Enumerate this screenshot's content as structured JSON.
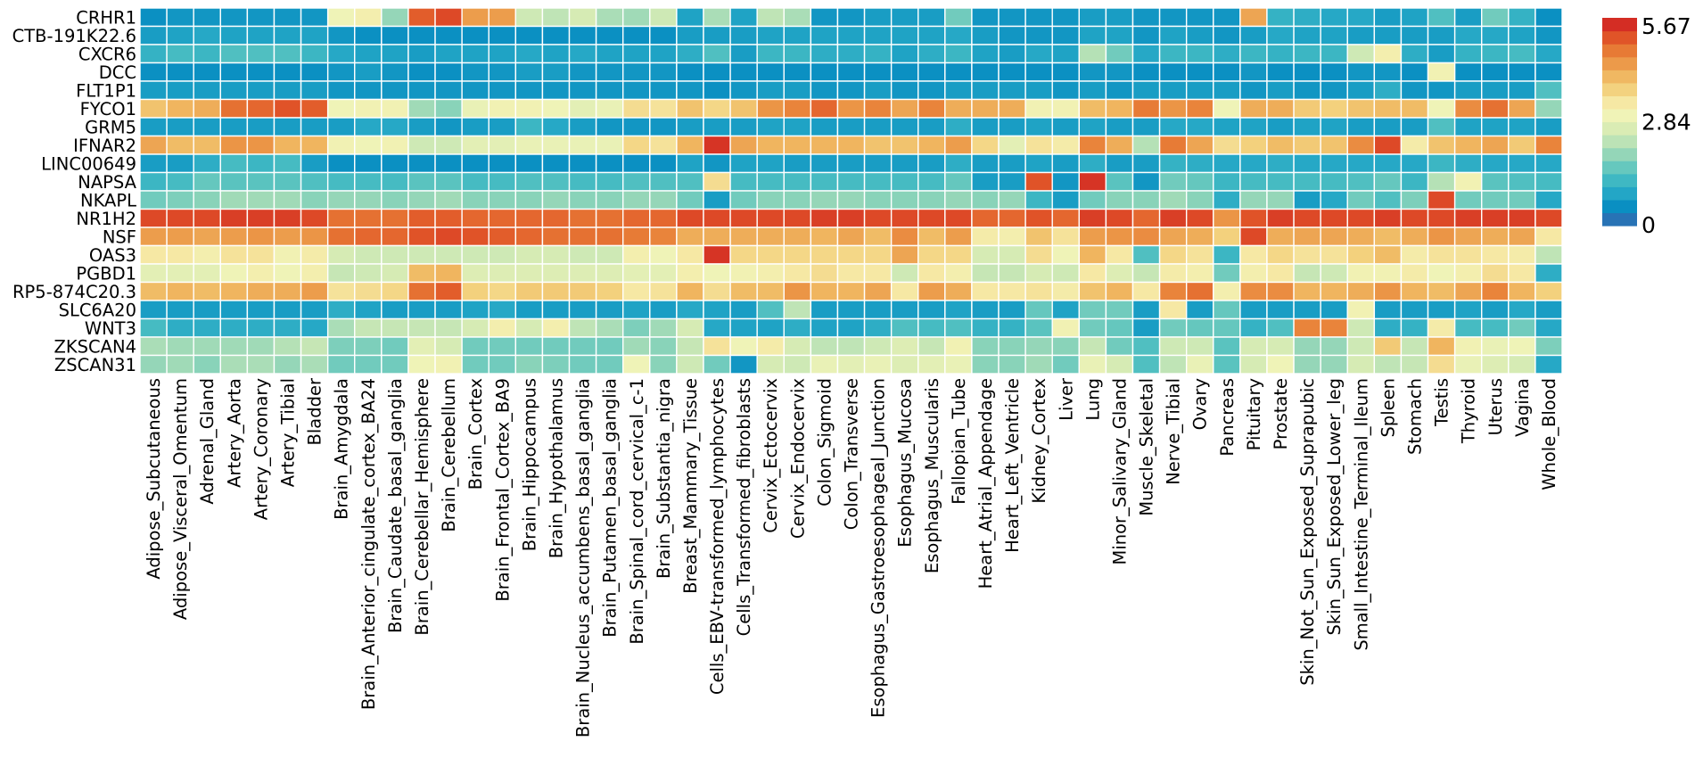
{
  "chart_data": {
    "type": "heatmap",
    "title": "",
    "xlabel": "",
    "ylabel": "",
    "rows": [
      "CRHR1",
      "CTB-191K22.6",
      "CXCR6",
      "DCC",
      "FLT1P1",
      "FYCO1",
      "GRM5",
      "IFNAR2",
      "LINC00649",
      "NAPSA",
      "NKAPL",
      "NR1H2",
      "NSF",
      "OAS3",
      "PGBD1",
      "RP5-874C20.3",
      "SLC6A20",
      "WNT3",
      "ZKSCAN4",
      "ZSCAN31"
    ],
    "columns": [
      "Adipose_Subcutaneous",
      "Adipose_Visceral_Omentum",
      "Adrenal_Gland",
      "Artery_Aorta",
      "Artery_Coronary",
      "Artery_Tibial",
      "Bladder",
      "Brain_Amygdala",
      "Brain_Anterior_cingulate_cortex_BA24",
      "Brain_Caudate_basal_ganglia",
      "Brain_Cerebellar_Hemisphere",
      "Brain_Cerebellum",
      "Brain_Cortex",
      "Brain_Frontal_Cortex_BA9",
      "Brain_Hippocampus",
      "Brain_Hypothalamus",
      "Brain_Nucleus_accumbens_basal_ganglia",
      "Brain_Putamen_basal_ganglia",
      "Brain_Spinal_cord_cervical_c-1",
      "Brain_Substantia_nigra",
      "Breast_Mammary_Tissue",
      "Cells_EBV-transformed_lymphocytes",
      "Cells_Transformed_fibroblasts",
      "Cervix_Ectocervix",
      "Cervix_Endocervix",
      "Colon_Sigmoid",
      "Colon_Transverse",
      "Esophagus_Gastroesophageal_Junction",
      "Esophagus_Mucosa",
      "Esophagus_Muscularis",
      "Fallopian_Tube",
      "Heart_Atrial_Appendage",
      "Heart_Left_Ventricle",
      "Kidney_Cortex",
      "Liver",
      "Lung",
      "Minor_Salivary_Gland",
      "Muscle_Skeletal",
      "Nerve_Tibial",
      "Ovary",
      "Pancreas",
      "Pituitary",
      "Prostate",
      "Skin_Not_Sun_Exposed_Suprapubic",
      "Skin_Sun_Exposed_Lower_leg",
      "Small_Intestine_Terminal_Ileum",
      "Spleen",
      "Stomach",
      "Testis",
      "Thyroid",
      "Uterus",
      "Vagina",
      "Whole_Blood"
    ],
    "values": [
      [
        0.4,
        0.5,
        0.5,
        0.5,
        0.5,
        0.5,
        0.5,
        3.0,
        3.2,
        1.9,
        5.2,
        5.4,
        4.5,
        4.5,
        2.5,
        2.3,
        2.6,
        2.1,
        2.0,
        2.5,
        0.7,
        2.1,
        0.7,
        2.3,
        2.1,
        0.5,
        0.5,
        0.6,
        0.6,
        0.6,
        1.6,
        0.5,
        0.5,
        0.5,
        0.5,
        0.6,
        0.6,
        0.5,
        0.5,
        0.5,
        0.5,
        4.4,
        1.0,
        0.9,
        0.8,
        0.8,
        0.6,
        0.7,
        1.3,
        0.6,
        1.6,
        1.0,
        0.4
      ],
      [
        0.6,
        0.7,
        0.8,
        0.7,
        0.7,
        0.7,
        0.7,
        0.5,
        0.4,
        0.4,
        0.4,
        0.4,
        0.4,
        0.4,
        0.4,
        0.4,
        0.4,
        0.4,
        0.4,
        0.4,
        0.6,
        0.6,
        0.6,
        0.7,
        0.7,
        0.7,
        0.7,
        0.7,
        0.7,
        0.7,
        0.8,
        0.6,
        0.5,
        0.5,
        0.5,
        0.7,
        0.7,
        0.5,
        0.7,
        0.6,
        0.5,
        0.6,
        0.8,
        0.7,
        0.7,
        0.6,
        0.6,
        0.6,
        0.6,
        0.8,
        0.8,
        0.7,
        0.5
      ],
      [
        1.0,
        1.2,
        1.1,
        1.3,
        1.3,
        1.3,
        1.1,
        0.8,
        0.7,
        0.7,
        0.6,
        0.7,
        0.7,
        0.7,
        0.8,
        0.7,
        0.8,
        0.7,
        0.7,
        0.7,
        0.9,
        1.3,
        0.6,
        1.1,
        1.1,
        0.9,
        0.9,
        1.0,
        0.7,
        0.9,
        1.1,
        0.7,
        0.6,
        0.8,
        0.7,
        2.2,
        1.6,
        0.8,
        1.1,
        1.1,
        0.9,
        1.1,
        1.0,
        1.1,
        1.1,
        2.5,
        3.2,
        0.9,
        0.6,
        1.0,
        1.1,
        1.2,
        0.8
      ],
      [
        0.4,
        0.4,
        0.4,
        0.4,
        0.4,
        0.4,
        0.4,
        0.5,
        0.6,
        0.5,
        0.4,
        0.4,
        0.5,
        0.5,
        0.6,
        0.6,
        0.5,
        0.5,
        0.5,
        0.5,
        0.4,
        0.4,
        0.4,
        0.4,
        0.4,
        0.4,
        0.4,
        0.4,
        0.4,
        0.4,
        0.4,
        0.4,
        0.4,
        0.4,
        0.4,
        0.5,
        0.5,
        0.4,
        0.4,
        0.4,
        0.4,
        0.5,
        0.4,
        0.4,
        0.4,
        0.5,
        0.5,
        0.4,
        3.1,
        0.4,
        0.4,
        0.4,
        0.4
      ],
      [
        0.6,
        0.6,
        0.6,
        0.6,
        0.6,
        0.6,
        0.6,
        0.5,
        0.5,
        0.5,
        0.5,
        0.5,
        0.5,
        0.5,
        0.5,
        0.5,
        0.5,
        0.5,
        0.5,
        0.5,
        0.5,
        0.4,
        0.5,
        0.6,
        0.6,
        0.5,
        0.5,
        0.6,
        0.5,
        0.5,
        0.6,
        0.6,
        0.6,
        0.6,
        0.5,
        0.6,
        0.5,
        0.6,
        0.6,
        0.6,
        0.6,
        0.5,
        0.6,
        0.5,
        0.5,
        0.6,
        0.9,
        0.5,
        0.5,
        0.6,
        0.6,
        0.6,
        1.3
      ],
      [
        4.0,
        4.2,
        4.3,
        5.0,
        5.1,
        5.3,
        5.2,
        3.0,
        3.1,
        3.1,
        2.0,
        1.8,
        2.9,
        3.1,
        3.1,
        3.0,
        2.8,
        2.9,
        3.6,
        3.5,
        4.0,
        3.7,
        4.0,
        4.6,
        4.8,
        5.1,
        4.6,
        4.8,
        4.4,
        4.8,
        4.3,
        4.3,
        4.3,
        3.1,
        3.1,
        4.1,
        4.2,
        4.9,
        4.6,
        4.8,
        3.0,
        4.3,
        4.3,
        3.9,
        3.8,
        4.0,
        4.1,
        4.1,
        3.0,
        4.7,
        5.0,
        4.4,
        1.9
      ],
      [
        0.6,
        0.6,
        0.6,
        0.6,
        0.6,
        0.6,
        0.6,
        0.6,
        0.8,
        0.8,
        0.6,
        0.5,
        0.6,
        0.6,
        1.1,
        0.8,
        0.6,
        0.5,
        0.5,
        0.5,
        0.6,
        0.6,
        0.6,
        0.7,
        0.7,
        0.6,
        0.6,
        0.6,
        0.6,
        0.6,
        0.9,
        0.6,
        0.6,
        0.7,
        0.6,
        0.7,
        0.6,
        0.6,
        0.8,
        0.8,
        0.7,
        0.7,
        0.6,
        0.7,
        0.7,
        0.6,
        0.6,
        0.6,
        1.3,
        0.7,
        0.7,
        0.7,
        0.6
      ],
      [
        4.4,
        4.1,
        4.1,
        4.6,
        4.6,
        4.2,
        4.2,
        3.1,
        3.0,
        3.1,
        2.5,
        2.5,
        2.8,
        2.8,
        2.9,
        2.9,
        2.9,
        2.9,
        3.7,
        3.5,
        4.2,
        5.6,
        4.4,
        4.2,
        4.2,
        4.2,
        4.2,
        4.0,
        4.0,
        4.2,
        4.5,
        3.7,
        2.8,
        3.5,
        3.3,
        4.8,
        4.3,
        2.2,
        4.9,
        4.4,
        3.6,
        3.8,
        4.1,
        3.9,
        4.0,
        4.7,
        5.4,
        3.3,
        4.0,
        4.2,
        4.4,
        3.9,
        4.8
      ],
      [
        0.6,
        0.6,
        0.9,
        1.2,
        1.1,
        1.2,
        0.6,
        0.4,
        0.4,
        0.4,
        0.4,
        0.4,
        0.4,
        0.4,
        0.4,
        0.4,
        0.4,
        0.4,
        0.4,
        0.4,
        0.7,
        0.5,
        0.7,
        0.7,
        0.6,
        0.6,
        0.6,
        0.6,
        0.6,
        0.6,
        0.9,
        0.6,
        0.6,
        0.7,
        0.6,
        0.9,
        0.6,
        0.6,
        1.0,
        0.9,
        0.8,
        0.8,
        0.9,
        0.8,
        0.8,
        0.8,
        0.8,
        0.8,
        1.1,
        0.9,
        0.8,
        0.8,
        0.8
      ],
      [
        1.1,
        1.2,
        1.5,
        1.4,
        1.4,
        1.4,
        1.3,
        1.2,
        1.2,
        1.2,
        1.4,
        1.4,
        1.2,
        1.2,
        1.3,
        1.3,
        1.2,
        1.2,
        1.3,
        1.3,
        1.3,
        3.6,
        1.2,
        1.2,
        1.2,
        1.2,
        1.2,
        1.2,
        1.2,
        1.2,
        1.5,
        0.6,
        0.6,
        5.3,
        0.5,
        5.6,
        1.4,
        0.5,
        1.6,
        1.5,
        1.1,
        1.2,
        1.2,
        1.2,
        1.2,
        1.3,
        1.5,
        1.1,
        2.2,
        3.1,
        1.4,
        1.3,
        1.2
      ],
      [
        1.6,
        1.7,
        1.8,
        2.0,
        2.0,
        2.0,
        1.8,
        1.9,
        1.9,
        1.8,
        1.9,
        2.0,
        1.8,
        1.8,
        1.8,
        1.9,
        1.8,
        1.8,
        1.9,
        1.9,
        1.6,
        0.6,
        1.6,
        1.8,
        1.8,
        1.9,
        1.9,
        1.8,
        1.8,
        1.8,
        1.9,
        1.8,
        1.9,
        1.1,
        0.6,
        1.6,
        1.8,
        1.8,
        2.0,
        1.8,
        0.9,
        1.9,
        1.9,
        0.6,
        0.8,
        1.6,
        1.3,
        1.7,
        5.4,
        1.6,
        1.6,
        1.6,
        0.8
      ],
      [
        5.4,
        5.4,
        5.4,
        5.5,
        5.5,
        5.5,
        5.4,
        5.0,
        5.0,
        5.0,
        5.2,
        5.2,
        5.1,
        5.1,
        5.1,
        5.1,
        5.0,
        5.0,
        5.1,
        5.1,
        5.4,
        5.4,
        5.4,
        5.4,
        5.4,
        5.5,
        5.5,
        5.4,
        5.4,
        5.4,
        5.4,
        5.1,
        5.1,
        5.3,
        5.1,
        5.5,
        5.4,
        5.1,
        5.5,
        5.4,
        4.6,
        5.3,
        5.5,
        5.4,
        5.4,
        5.4,
        5.5,
        5.4,
        5.4,
        5.5,
        5.5,
        5.5,
        5.4
      ],
      [
        4.5,
        4.5,
        4.4,
        4.5,
        4.6,
        4.5,
        4.6,
        5.0,
        5.1,
        5.1,
        5.3,
        5.4,
        5.3,
        5.2,
        5.1,
        5.0,
        5.0,
        5.0,
        4.9,
        4.8,
        4.3,
        4.3,
        4.3,
        4.3,
        4.3,
        4.2,
        4.4,
        4.1,
        4.7,
        4.1,
        4.5,
        3.3,
        3.2,
        4.0,
        3.5,
        4.5,
        4.6,
        4.7,
        4.4,
        4.3,
        3.8,
        5.4,
        4.3,
        4.4,
        4.4,
        4.3,
        4.1,
        4.3,
        4.6,
        4.4,
        4.3,
        4.4,
        3.4
      ],
      [
        3.4,
        3.4,
        3.2,
        3.5,
        3.5,
        3.1,
        3.3,
        2.6,
        2.5,
        2.5,
        2.5,
        2.5,
        2.5,
        2.5,
        2.6,
        2.6,
        2.5,
        2.5,
        3.2,
        3.0,
        3.4,
        5.6,
        3.7,
        3.7,
        3.7,
        3.7,
        3.7,
        3.7,
        4.4,
        3.7,
        3.7,
        2.6,
        2.6,
        3.6,
        3.0,
        4.2,
        3.4,
        1.3,
        3.7,
        3.5,
        1.1,
        3.4,
        3.7,
        3.5,
        3.5,
        3.8,
        4.1,
        3.3,
        3.5,
        3.5,
        3.4,
        3.3,
        2.3
      ],
      [
        2.8,
        2.8,
        2.8,
        3.0,
        3.2,
        3.0,
        3.2,
        2.4,
        2.5,
        2.6,
        4.1,
        4.2,
        2.7,
        2.7,
        2.7,
        2.7,
        2.7,
        2.7,
        2.8,
        2.8,
        3.2,
        3.0,
        3.1,
        3.2,
        3.4,
        3.6,
        3.4,
        3.4,
        2.5,
        3.4,
        3.2,
        2.4,
        2.4,
        2.6,
        2.5,
        3.4,
        2.7,
        2.4,
        3.3,
        3.2,
        1.6,
        3.2,
        3.4,
        2.4,
        2.5,
        3.1,
        3.1,
        3.3,
        3.0,
        3.2,
        3.6,
        3.4,
        0.9
      ],
      [
        4.1,
        4.2,
        4.1,
        4.2,
        4.3,
        4.3,
        4.5,
        3.5,
        3.6,
        3.7,
        5.0,
        5.2,
        3.8,
        3.7,
        3.9,
        3.9,
        3.9,
        3.8,
        3.4,
        3.5,
        4.2,
        3.6,
        4.1,
        4.1,
        4.6,
        4.2,
        4.2,
        4.4,
        3.4,
        4.5,
        4.3,
        3.4,
        3.4,
        3.5,
        3.3,
        4.0,
        4.2,
        3.4,
        4.8,
        5.0,
        3.2,
        4.7,
        4.7,
        4.2,
        4.2,
        4.3,
        4.6,
        4.2,
        4.1,
        4.4,
        4.8,
        4.2,
        3.8
      ],
      [
        0.6,
        0.6,
        0.6,
        0.6,
        0.6,
        0.6,
        0.6,
        0.9,
        0.7,
        0.6,
        0.6,
        0.6,
        0.7,
        0.8,
        0.6,
        0.6,
        0.6,
        0.6,
        0.7,
        0.6,
        0.8,
        0.7,
        0.6,
        1.3,
        2.3,
        0.6,
        0.6,
        0.6,
        0.6,
        0.6,
        0.7,
        0.6,
        0.6,
        1.5,
        0.7,
        1.6,
        1.6,
        0.6,
        3.4,
        0.6,
        1.5,
        0.6,
        0.6,
        0.6,
        0.6,
        3.1,
        0.6,
        0.6,
        0.6,
        0.7,
        0.6,
        0.8,
        0.6
      ],
      [
        1.2,
        0.9,
        0.9,
        0.9,
        0.9,
        0.9,
        0.8,
        2.1,
        2.4,
        2.4,
        2.4,
        2.4,
        2.6,
        3.2,
        2.6,
        3.2,
        2.3,
        2.1,
        1.7,
        2.0,
        2.6,
        0.8,
        0.7,
        0.7,
        0.9,
        0.7,
        0.7,
        0.9,
        1.3,
        1.2,
        1.3,
        1.0,
        1.0,
        1.4,
        3.1,
        1.6,
        1.5,
        0.6,
        1.6,
        1.5,
        1.5,
        1.0,
        1.3,
        4.8,
        4.8,
        2.5,
        0.9,
        1.0,
        3.3,
        1.2,
        1.2,
        1.6,
        0.8
      ],
      [
        2.1,
        2.0,
        2.0,
        2.0,
        2.0,
        2.2,
        2.4,
        1.7,
        1.7,
        1.6,
        2.8,
        2.6,
        1.6,
        1.6,
        1.6,
        1.6,
        1.6,
        1.6,
        2.0,
        1.8,
        2.4,
        3.5,
        3.0,
        3.3,
        2.6,
        2.3,
        2.3,
        2.5,
        2.7,
        2.4,
        3.1,
        1.8,
        1.8,
        1.9,
        1.8,
        2.4,
        1.6,
        1.3,
        2.5,
        2.5,
        1.4,
        2.6,
        2.6,
        1.9,
        1.9,
        2.5,
        3.9,
        2.4,
        4.2,
        3.1,
        2.9,
        3.0,
        1.7
      ],
      [
        1.9,
        2.0,
        1.8,
        2.1,
        2.1,
        1.9,
        2.1,
        1.6,
        1.6,
        1.6,
        3.0,
        3.1,
        1.6,
        1.6,
        1.8,
        1.7,
        1.6,
        1.6,
        3.0,
        1.8,
        2.5,
        1.6,
        0.5,
        2.6,
        2.5,
        2.9,
        2.8,
        2.9,
        2.7,
        2.8,
        2.9,
        1.8,
        1.8,
        2.0,
        1.6,
        2.9,
        2.6,
        1.3,
        2.3,
        2.9,
        1.4,
        2.6,
        3.0,
        1.9,
        1.9,
        2.6,
        2.3,
        2.4,
        3.6,
        2.9,
        2.7,
        2.6,
        0.8
      ]
    ],
    "colorbar": {
      "min": 0,
      "max": 5.67,
      "tick_labels": [
        "5.67",
        "2.84",
        "0"
      ]
    },
    "colormap": [
      "#2873b5",
      "#0a8fc2",
      "#23a6c6",
      "#3fb8c3",
      "#66c8be",
      "#94d6b8",
      "#bce3b6",
      "#daecb4",
      "#f0f3b7",
      "#f6e8a4",
      "#f3d27f",
      "#f0b862",
      "#ec9a4a",
      "#e77a35",
      "#e05428",
      "#d42d24"
    ]
  }
}
